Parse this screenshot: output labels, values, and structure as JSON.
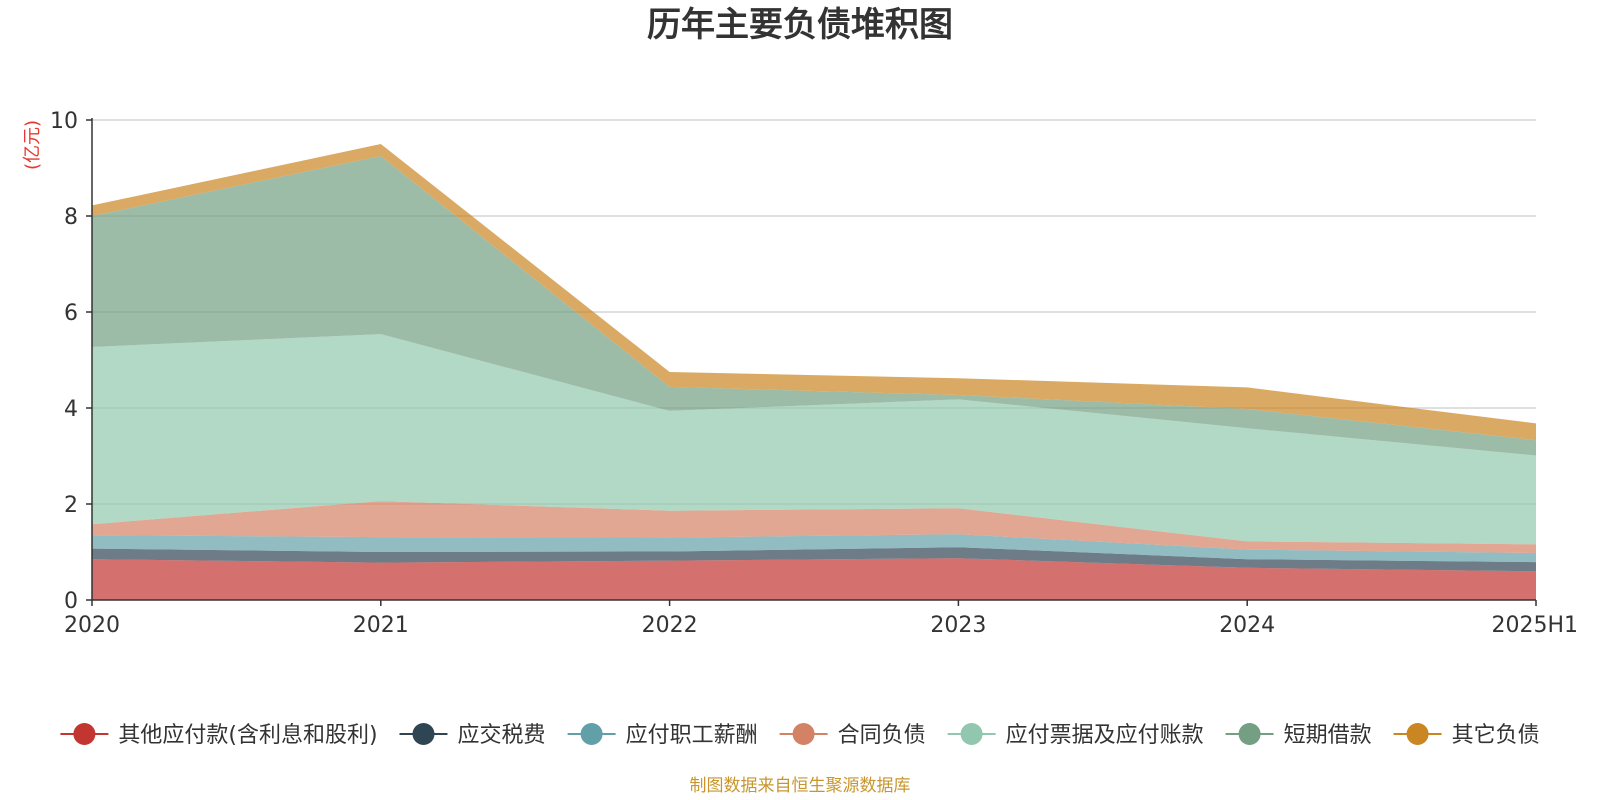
{
  "chart_data": {
    "type": "area",
    "stacked": true,
    "title": "历年主要负债堆积图",
    "unit_label": "(亿元)",
    "source": "制图数据来自恒生聚源数据库",
    "x": [
      "2020",
      "2021",
      "2022",
      "2023",
      "2024",
      "2025H1"
    ],
    "ylim": [
      0,
      10
    ],
    "yticks": [
      0,
      2,
      4,
      6,
      8,
      10
    ],
    "grid": true,
    "legend_position": "bottom",
    "series": [
      {
        "name": "其他应付款(含利息和股利)",
        "color": "#c23531",
        "values": [
          0.85,
          0.78,
          0.82,
          0.87,
          0.67,
          0.6
        ]
      },
      {
        "name": "应交税费",
        "color": "#2f4554",
        "values": [
          0.22,
          0.22,
          0.19,
          0.23,
          0.18,
          0.19
        ]
      },
      {
        "name": "应付职工薪酬",
        "color": "#61a0a8",
        "values": [
          0.28,
          0.31,
          0.29,
          0.27,
          0.2,
          0.19
        ]
      },
      {
        "name": "合同负债",
        "color": "#d48265",
        "values": [
          0.23,
          0.75,
          0.56,
          0.54,
          0.17,
          0.18
        ]
      },
      {
        "name": "应付票据及应付账款",
        "color": "#91c7ae",
        "values": [
          3.69,
          3.48,
          2.08,
          2.27,
          2.36,
          1.85
        ]
      },
      {
        "name": "短期借款",
        "color": "#749f83",
        "values": [
          2.73,
          3.71,
          0.5,
          0.09,
          0.4,
          0.32
        ]
      },
      {
        "name": "其它负债",
        "color": "#ca8622",
        "values": [
          0.22,
          0.25,
          0.31,
          0.35,
          0.45,
          0.35
        ]
      }
    ]
  }
}
